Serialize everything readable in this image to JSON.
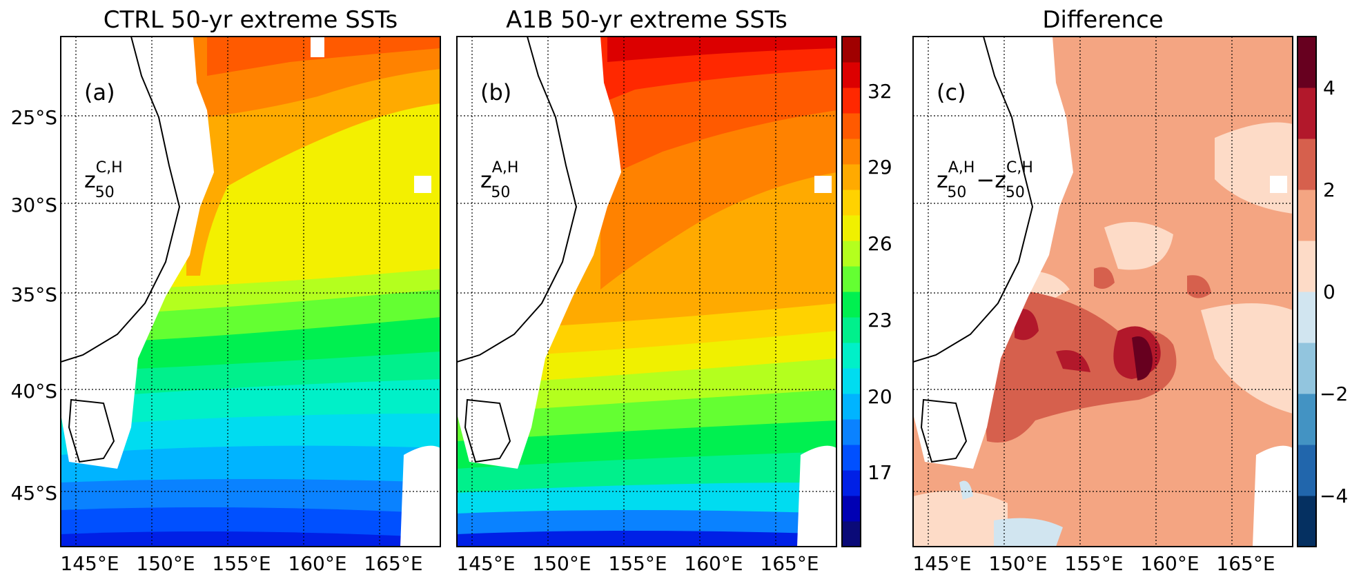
{
  "figure": {
    "panels": [
      {
        "title": "CTRL 50-yr extreme SSTs",
        "label": "(a)",
        "var_base": "z",
        "var_sub": "50",
        "var_sup": "C,H"
      },
      {
        "title": "A1B 50-yr extreme SSTs",
        "label": "(b)",
        "var_base": "z",
        "var_sub": "50",
        "var_sup": "A,H"
      },
      {
        "title": "Difference",
        "label": "(c)",
        "var_base": "z",
        "var_sub": "50",
        "var_sup": "A,H",
        "minus": "−",
        "var2_base": "z",
        "var2_sub": "50",
        "var2_sup": "C,H"
      }
    ],
    "y_tick_labels": [
      "25°S",
      "30°S",
      "35°S",
      "40°S",
      "45°S"
    ],
    "x_tick_labels": [
      "145°E",
      "150°E",
      "155°E",
      "160°E",
      "165°E"
    ],
    "sst_colorbar": {
      "tick_labels": [
        "32",
        "29",
        "26",
        "23",
        "20",
        "17"
      ],
      "colors": [
        "#0a0a78",
        "#0000b4",
        "#0020e6",
        "#0050ff",
        "#0a82ff",
        "#00b4ff",
        "#00dcf0",
        "#00f0c8",
        "#00f08c",
        "#00f050",
        "#64ff32",
        "#b4ff1e",
        "#f0f000",
        "#ffd200",
        "#ffaa00",
        "#ff8200",
        "#ff5a00",
        "#ff2800",
        "#dc0000",
        "#a00000"
      ]
    },
    "diff_colorbar": {
      "tick_labels": [
        "4",
        "2",
        "0",
        "−2",
        "−4"
      ],
      "colors": [
        "#053061",
        "#2166ac",
        "#4393c3",
        "#92c5de",
        "#d1e5f0",
        "#fddbc7",
        "#f4a582",
        "#d6604d",
        "#b2182b",
        "#67001f"
      ]
    },
    "colors": {
      "coastline": "#000000",
      "grid": "#000000",
      "land": "#ffffff"
    }
  }
}
